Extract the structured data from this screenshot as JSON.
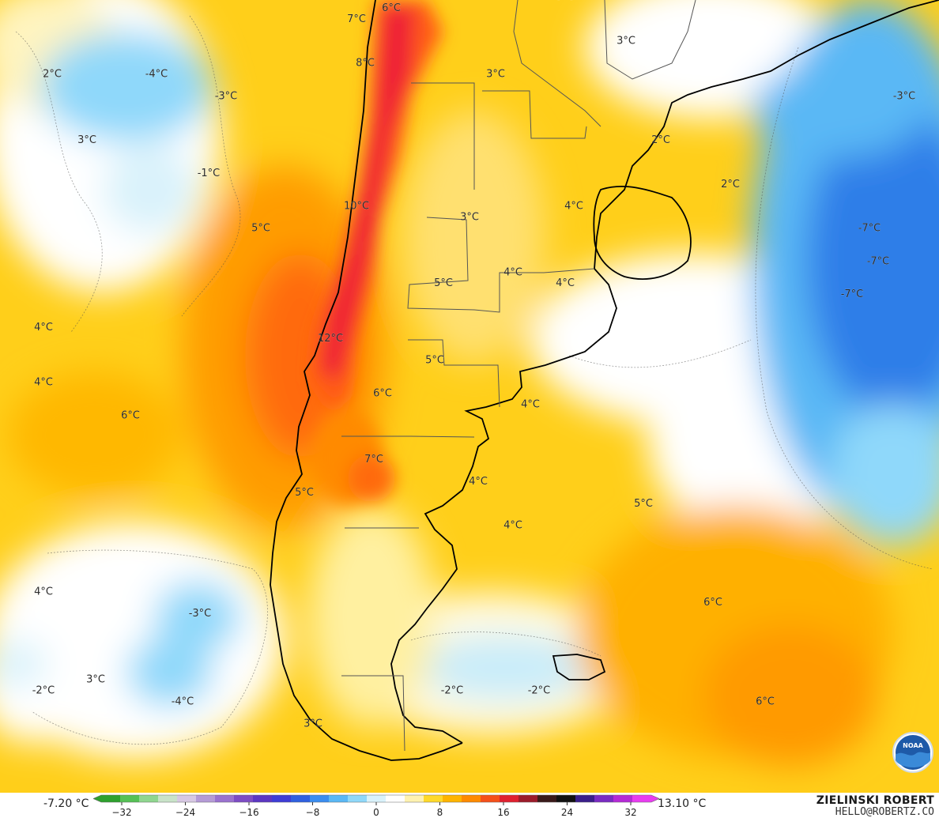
{
  "map": {
    "temperature_labels": [
      {
        "text": "7°C",
        "lon": -71.5,
        "lat": -29.0
      },
      {
        "text": "6°C",
        "lon": -69.5,
        "lat": -28.5
      },
      {
        "text": "8°C",
        "lon": -71.0,
        "lat": -31.0
      },
      {
        "text": "3°C",
        "lon": -59.5,
        "lat": -28.0
      },
      {
        "text": "3°C",
        "lon": -63.5,
        "lat": -31.5
      },
      {
        "text": "3°C",
        "lon": -56.0,
        "lat": -30.0
      },
      {
        "text": "-3°C",
        "lon": -40.0,
        "lat": -32.5
      },
      {
        "text": "2°C",
        "lon": -54.0,
        "lat": -34.5
      },
      {
        "text": "2°C",
        "lon": -50.0,
        "lat": -36.5
      },
      {
        "text": "-4°C",
        "lon": -83.0,
        "lat": -31.5
      },
      {
        "text": "-3°C",
        "lon": -79.0,
        "lat": -32.5
      },
      {
        "text": "2°C",
        "lon": -89.0,
        "lat": -31.5
      },
      {
        "text": "3°C",
        "lon": -87.0,
        "lat": -34.5
      },
      {
        "text": "-1°C",
        "lon": -80.0,
        "lat": -36.0
      },
      {
        "text": "5°C",
        "lon": -77.0,
        "lat": -38.5
      },
      {
        "text": "10°C",
        "lon": -71.5,
        "lat": -37.5
      },
      {
        "text": "3°C",
        "lon": -65.0,
        "lat": -38.0
      },
      {
        "text": "4°C",
        "lon": -59.0,
        "lat": -37.5
      },
      {
        "text": "-7°C",
        "lon": -42.0,
        "lat": -38.5
      },
      {
        "text": "-7°C",
        "lon": -41.5,
        "lat": -40.0
      },
      {
        "text": "-7°C",
        "lon": -43.0,
        "lat": -41.5
      },
      {
        "text": "5°C",
        "lon": -66.5,
        "lat": -41.0
      },
      {
        "text": "4°C",
        "lon": -62.5,
        "lat": -40.5
      },
      {
        "text": "4°C",
        "lon": -59.5,
        "lat": -41.0
      },
      {
        "text": "4°C",
        "lon": -89.5,
        "lat": -43.0
      },
      {
        "text": "12°C",
        "lon": -73.0,
        "lat": -43.5
      },
      {
        "text": "5°C",
        "lon": -67.0,
        "lat": -44.5
      },
      {
        "text": "4°C",
        "lon": -89.5,
        "lat": -45.5
      },
      {
        "text": "6°C",
        "lon": -70.0,
        "lat": -46.0
      },
      {
        "text": "4°C",
        "lon": -61.5,
        "lat": -46.5
      },
      {
        "text": "6°C",
        "lon": -84.5,
        "lat": -47.0
      },
      {
        "text": "7°C",
        "lon": -70.5,
        "lat": -49.0
      },
      {
        "text": "4°C",
        "lon": -64.5,
        "lat": -50.0
      },
      {
        "text": "5°C",
        "lon": -74.5,
        "lat": -50.5
      },
      {
        "text": "5°C",
        "lon": -55.0,
        "lat": -51.0
      },
      {
        "text": "4°C",
        "lon": -62.5,
        "lat": -52.0
      },
      {
        "text": "4°C",
        "lon": -89.5,
        "lat": -55.0
      },
      {
        "text": "-3°C",
        "lon": -80.5,
        "lat": -56.0
      },
      {
        "text": "6°C",
        "lon": -51.0,
        "lat": -55.5
      },
      {
        "text": "3°C",
        "lon": -86.5,
        "lat": -59.0
      },
      {
        "text": "-2°C",
        "lon": -89.5,
        "lat": -59.5
      },
      {
        "text": "-4°C",
        "lon": -81.5,
        "lat": -60.0
      },
      {
        "text": "-2°C",
        "lon": -66.0,
        "lat": -59.5
      },
      {
        "text": "-2°C",
        "lon": -61.0,
        "lat": -59.5
      },
      {
        "text": "6°C",
        "lon": -48.0,
        "lat": -60.0
      },
      {
        "text": "3°C",
        "lon": -74.0,
        "lat": -61.0
      }
    ]
  },
  "colorbar": {
    "min_label": "-7.20 °C",
    "max_label": "13.10 °C",
    "ticks": [
      "−32",
      "−24",
      "−16",
      "−8",
      "0",
      "8",
      "16",
      "24",
      "32"
    ],
    "colors": [
      "#2ea12e",
      "#55c155",
      "#8fd68f",
      "#c9e3c9",
      "#d7c8e3",
      "#b59bd6",
      "#9a72cf",
      "#7d4cc4",
      "#5b36c2",
      "#3e3dd6",
      "#2f60e0",
      "#3a8df0",
      "#5ab8f5",
      "#8fd8fa",
      "#d9f2fb",
      "#ffffff",
      "#fff2b0",
      "#ffd92a",
      "#ffb400",
      "#ff8a00",
      "#f5501a",
      "#e0202f",
      "#9c1b2a",
      "#3a1a1a",
      "#111111",
      "#3a1e8a",
      "#7a2bc2",
      "#b52ad6",
      "#e83cf0"
    ]
  },
  "credit": {
    "name": "ZIELINSKI ROBERT",
    "email": "HELLO@ROBERTZ.CO"
  },
  "logo": {
    "text": "NOAA"
  }
}
